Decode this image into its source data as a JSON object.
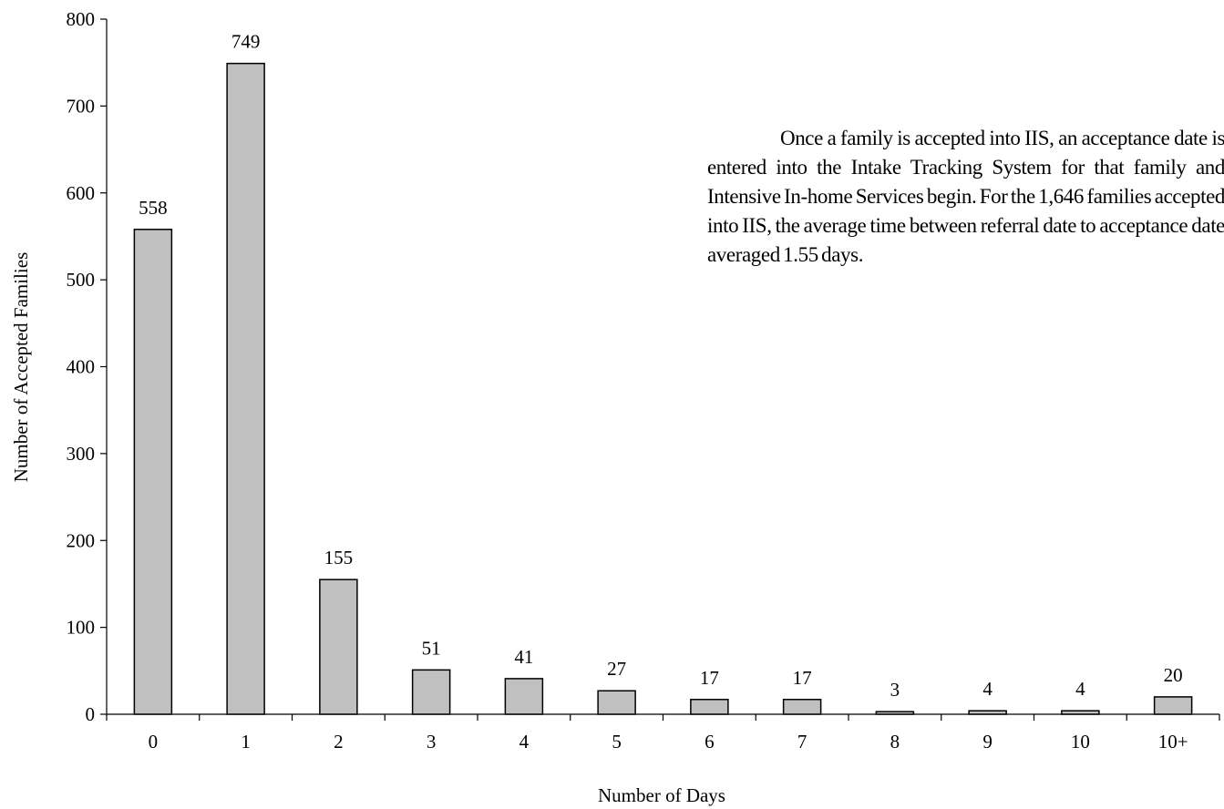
{
  "chart_data": {
    "type": "bar",
    "categories": [
      "0",
      "1",
      "2",
      "3",
      "4",
      "5",
      "6",
      "7",
      "8",
      "9",
      "10",
      "10+"
    ],
    "values": [
      558,
      749,
      155,
      51,
      41,
      27,
      17,
      17,
      3,
      4,
      4,
      20
    ],
    "data_labels": [
      "558",
      "749",
      "155",
      "51",
      "41",
      "27",
      "17",
      "17",
      "3",
      "4",
      "4",
      "20"
    ],
    "xlabel": "Number of Days",
    "ylabel": "Number of Accepted Families",
    "ylim": [
      0,
      800
    ],
    "yticks": [
      "0",
      "100",
      "200",
      "300",
      "400",
      "500",
      "600",
      "700",
      "800"
    ],
    "grid": false,
    "legend": "none",
    "bar_color": "#c0c0c0",
    "bar_edge_color": "#000000",
    "annotation": "Once a family is accepted into IIS, an acceptance date is entered into the Intake Tracking System for that family and Intensive In-home Services begin. For the 1,646 families accepted into IIS, the average time between referral date to acceptance date averaged 1.55 days."
  }
}
